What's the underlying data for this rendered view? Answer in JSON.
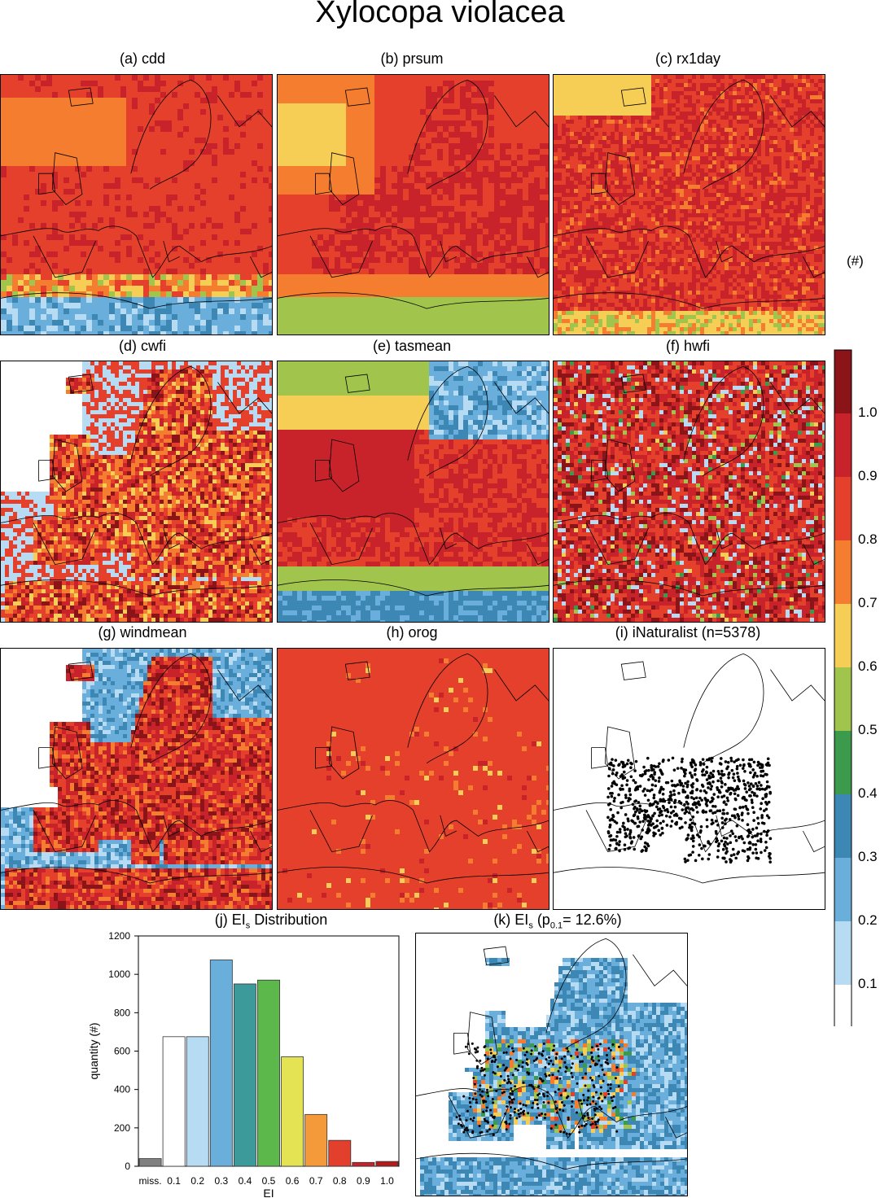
{
  "title": "Xylocopa violacea",
  "panels": [
    {
      "id": "a",
      "label": "(a) cdd"
    },
    {
      "id": "b",
      "label": "(b) prsum"
    },
    {
      "id": "c",
      "label": "(c) rx1day"
    },
    {
      "id": "d",
      "label": "(d) cwfi"
    },
    {
      "id": "e",
      "label": "(e) tasmean"
    },
    {
      "id": "f",
      "label": "(f) hwfi"
    },
    {
      "id": "g",
      "label": "(g) windmean"
    },
    {
      "id": "h",
      "label": "(h) orog"
    },
    {
      "id": "i",
      "label": "(i) iNaturalist (n=5378)"
    }
  ],
  "panel_j": {
    "label_pre": "(j) EI",
    "label_sub": "s",
    "label_post": " Distribution"
  },
  "panel_k": {
    "label_pre": "(k) EI",
    "label_sub": "s",
    "label_mid": " (p",
    "label_sub2": "0.1",
    "label_post": "= 12.6%)"
  },
  "colorbar": {
    "unit": "(#)",
    "labels": [
      "1.0",
      "0.9",
      "0.8",
      "0.7",
      "0.6",
      "0.5",
      "0.4",
      "0.3",
      "0.2",
      "0.1"
    ],
    "colors": [
      "#8b1418",
      "#c8222a",
      "#e5402c",
      "#f47d2f",
      "#f6cd55",
      "#a1c54c",
      "#3b9a4b",
      "#3d87b5",
      "#6aaedb",
      "#b6dbf2",
      "#ffffff"
    ]
  },
  "chart_data": {
    "type": "bar",
    "categories": [
      "miss.",
      "0.1",
      "0.2",
      "0.3",
      "0.4",
      "0.5",
      "0.6",
      "0.7",
      "0.8",
      "0.9",
      "1.0"
    ],
    "values": [
      40,
      675,
      675,
      1075,
      950,
      970,
      570,
      270,
      135,
      20,
      25
    ],
    "colors": [
      "#808080",
      "#ffffff",
      "#b6dbf2",
      "#6aaedb",
      "#3d9a9a",
      "#5cb84a",
      "#e3e353",
      "#f49a3b",
      "#e2402c",
      "#c8222a",
      "#b51a1a"
    ],
    "ylabel": "quantity (#)",
    "xlabel": "EI",
    "ylim": [
      0,
      1200
    ],
    "yticks": [
      0,
      200,
      400,
      600,
      800,
      1000,
      1200
    ]
  }
}
